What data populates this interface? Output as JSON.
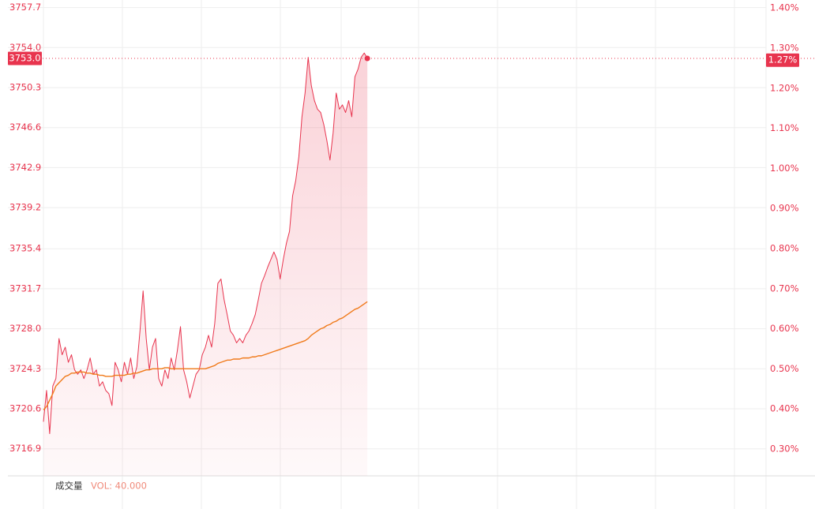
{
  "chart_data": {
    "type": "line",
    "xlim": [
      0,
      232
    ],
    "ylim": [
      3714.4,
      3758.4
    ],
    "yticks": [
      3716.9,
      3720.6,
      3724.3,
      {
        "value": 3728,
        "label": "3728.0"
      },
      3731.7,
      3735.4,
      3739.2,
      3742.9,
      3746.6,
      3750.3,
      {
        "value": 3754,
        "label": "3754.0"
      },
      3757.7
    ],
    "y2lim": [
      0.233,
      1.42
    ],
    "y2ticks": [
      {
        "value": 0.3,
        "label": "0.30%"
      },
      {
        "value": 0.4,
        "label": "0.40%"
      },
      {
        "value": 0.5,
        "label": "0.50%"
      },
      {
        "value": 0.6,
        "label": "0.60%"
      },
      {
        "value": 0.7,
        "label": "0.70%"
      },
      {
        "value": 0.8,
        "label": "0.80%"
      },
      {
        "value": 0.9,
        "label": "0.90%"
      },
      {
        "value": 1.0,
        "label": "1.00%"
      },
      {
        "value": 1.1,
        "label": "1.10%"
      },
      {
        "value": 1.2,
        "label": "1.20%"
      },
      {
        "value": 1.3,
        "label": "1.30%"
      },
      {
        "value": 1.4,
        "label": "1.40%"
      }
    ],
    "grid": true,
    "last_price": {
      "value": 3753,
      "label": "3753.0"
    },
    "last_change": {
      "value": 1.27,
      "label": "1.27%"
    },
    "volume_title": "成交量",
    "volume_label": "VOL: 40.000",
    "series": [
      {
        "name": "price",
        "color": "#e8344e",
        "values": [
          3719.4,
          3722.3,
          3718.3,
          3722.7,
          3723.4,
          3727.1,
          3725.6,
          3726.3,
          3724.9,
          3725.6,
          3724.2,
          3723.8,
          3724.2,
          3723.4,
          3724.2,
          3725.3,
          3723.8,
          3724.2,
          3722.7,
          3723.1,
          3722.3,
          3722.0,
          3720.9,
          3724.9,
          3724.2,
          3723.1,
          3724.9,
          3723.8,
          3725.3,
          3723.4,
          3724.5,
          3727.8,
          3731.5,
          3727.1,
          3724.2,
          3726.3,
          3727.1,
          3723.4,
          3722.7,
          3724.2,
          3723.4,
          3725.3,
          3724.2,
          3726.0,
          3728.2,
          3724.2,
          3723.1,
          3721.6,
          3722.7,
          3723.8,
          3724.2,
          3725.6,
          3726.3,
          3727.4,
          3726.3,
          3728.5,
          3732.2,
          3732.6,
          3730.7,
          3729.3,
          3727.8,
          3727.4,
          3726.7,
          3727.1,
          3726.7,
          3727.4,
          3727.8,
          3728.5,
          3729.3,
          3730.7,
          3732.2,
          3732.9,
          3733.7,
          3734.4,
          3735.1,
          3734.4,
          3732.6,
          3734.4,
          3735.9,
          3737.0,
          3740.3,
          3741.7,
          3743.9,
          3747.6,
          3749.8,
          3753.1,
          3750.5,
          3749.1,
          3748.3,
          3748.0,
          3746.9,
          3745.4,
          3743.6,
          3746.1,
          3749.8,
          3748.3,
          3748.7,
          3748.0,
          3749.1,
          3747.6,
          3751.3,
          3752.0,
          3753.1,
          3753.5,
          3753.0
        ]
      },
      {
        "name": "average",
        "color": "#f07a1a",
        "values": [
          3720.5,
          3720.8,
          3721.4,
          3722.0,
          3722.7,
          3723.0,
          3723.3,
          3723.6,
          3723.7,
          3723.9,
          3723.9,
          3724.0,
          3724.0,
          3724.0,
          3723.9,
          3723.9,
          3723.8,
          3723.8,
          3723.7,
          3723.7,
          3723.6,
          3723.6,
          3723.6,
          3723.7,
          3723.7,
          3723.7,
          3723.7,
          3723.8,
          3723.8,
          3723.9,
          3723.9,
          3724.0,
          3724.1,
          3724.2,
          3724.2,
          3724.3,
          3724.3,
          3724.3,
          3724.3,
          3724.4,
          3724.4,
          3724.3,
          3724.3,
          3724.3,
          3724.3,
          3724.3,
          3724.3,
          3724.3,
          3724.3,
          3724.3,
          3724.3,
          3724.3,
          3724.3,
          3724.4,
          3724.5,
          3724.6,
          3724.8,
          3724.9,
          3725.0,
          3725.1,
          3725.1,
          3725.2,
          3725.2,
          3725.2,
          3725.3,
          3725.3,
          3725.3,
          3725.4,
          3725.4,
          3725.5,
          3725.5,
          3725.6,
          3725.7,
          3725.8,
          3725.9,
          3726.0,
          3726.1,
          3726.2,
          3726.3,
          3726.4,
          3726.5,
          3726.6,
          3726.7,
          3726.8,
          3726.9,
          3727.1,
          3727.4,
          3727.6,
          3727.8,
          3728.0,
          3728.1,
          3728.3,
          3728.4,
          3728.6,
          3728.7,
          3728.9,
          3729.0,
          3729.2,
          3729.4,
          3729.6,
          3729.8,
          3729.9,
          3730.1,
          3730.3,
          3730.5
        ]
      }
    ]
  }
}
